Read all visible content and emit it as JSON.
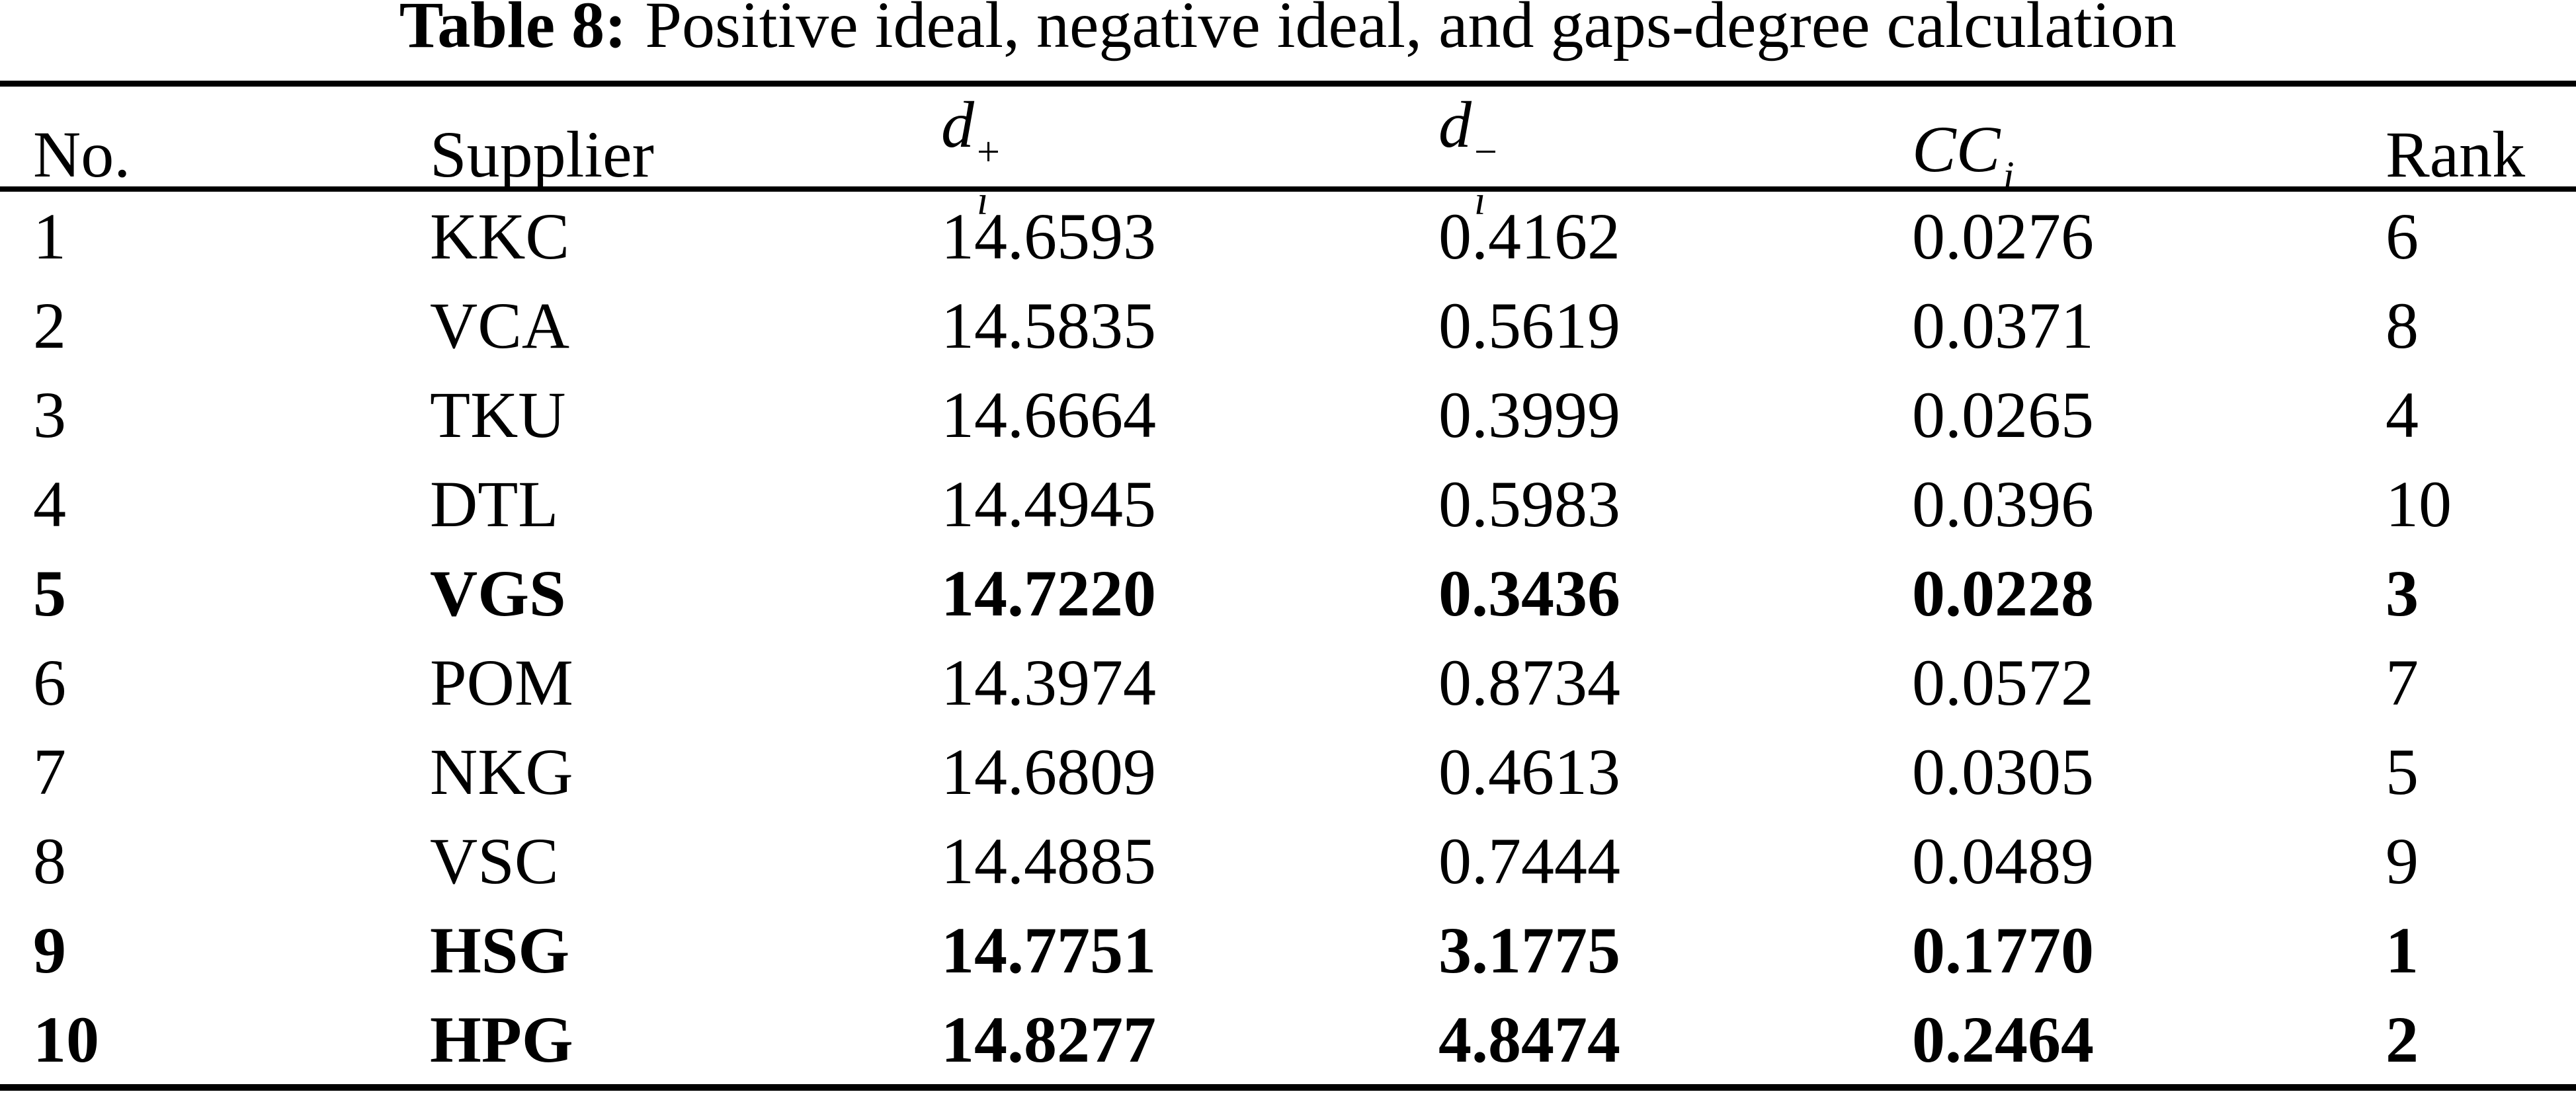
{
  "title": {
    "label": "Table 8:",
    "text": "Positive ideal, negative ideal, and gaps-degree calculation"
  },
  "table": {
    "columns": [
      {
        "text": "No."
      },
      {
        "text": "Supplier"
      },
      {
        "base": "d",
        "sub": "i",
        "sup": "+"
      },
      {
        "base": "d",
        "sub": "i",
        "sup": "−"
      },
      {
        "base": "CC",
        "sub": "i",
        "sup": ""
      },
      {
        "text": "Rank"
      }
    ],
    "rows": [
      {
        "no": "1",
        "supplier": "KKC",
        "d_plus": "14.6593",
        "d_minus": "0.4162",
        "cc": "0.0276",
        "rank": "6",
        "bold": false
      },
      {
        "no": "2",
        "supplier": "VCA",
        "d_plus": "14.5835",
        "d_minus": "0.5619",
        "cc": "0.0371",
        "rank": "8",
        "bold": false
      },
      {
        "no": "3",
        "supplier": "TKU",
        "d_plus": "14.6664",
        "d_minus": "0.3999",
        "cc": "0.0265",
        "rank": "4",
        "bold": false
      },
      {
        "no": "4",
        "supplier": "DTL",
        "d_plus": "14.4945",
        "d_minus": "0.5983",
        "cc": "0.0396",
        "rank": "10",
        "bold": false
      },
      {
        "no": "5",
        "supplier": "VGS",
        "d_plus": "14.7220",
        "d_minus": "0.3436",
        "cc": "0.0228",
        "rank": "3",
        "bold": true
      },
      {
        "no": "6",
        "supplier": "POM",
        "d_plus": "14.3974",
        "d_minus": "0.8734",
        "cc": "0.0572",
        "rank": "7",
        "bold": false
      },
      {
        "no": "7",
        "supplier": "NKG",
        "d_plus": "14.6809",
        "d_minus": "0.4613",
        "cc": "0.0305",
        "rank": "5",
        "bold": false
      },
      {
        "no": "8",
        "supplier": "VSC",
        "d_plus": "14.4885",
        "d_minus": "0.7444",
        "cc": "0.0489",
        "rank": "9",
        "bold": false
      },
      {
        "no": "9",
        "supplier": "HSG",
        "d_plus": "14.7751",
        "d_minus": "3.1775",
        "cc": "0.1770",
        "rank": "1",
        "bold": true
      },
      {
        "no": "10",
        "supplier": "HPG",
        "d_plus": "14.8277",
        "d_minus": "4.8474",
        "cc": "0.2464",
        "rank": "2",
        "bold": true
      }
    ]
  },
  "colors": {
    "background": "#ffffff",
    "text": "#000000",
    "rule": "#000000"
  }
}
